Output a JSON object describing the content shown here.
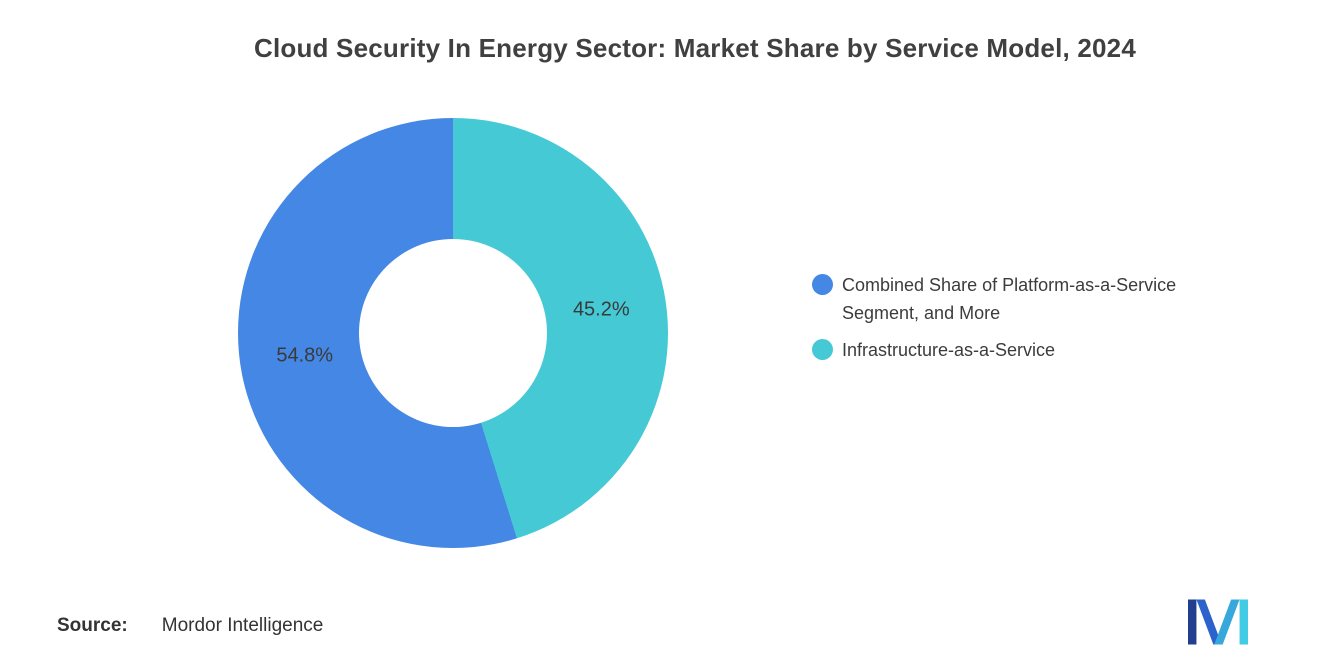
{
  "chart_data": {
    "type": "pie",
    "subtype": "donut",
    "title": "Cloud Security In Energy Sector: Market Share by Service Model, 2024",
    "start_angle_deg": 0,
    "direction": "clockwise",
    "donut_hole_ratio": 0.437,
    "slices": [
      {
        "label": "Infrastructure-as-a-Service",
        "value": 45.2,
        "display_value": "45.2%",
        "color": "#45C9D5"
      },
      {
        "label": "Combined Share of Platform-as-a-Service Segment, and More",
        "value": 54.8,
        "display_value": "54.8%",
        "color": "#4587E4"
      }
    ],
    "legend_position": "right",
    "legend_order": [
      1,
      0
    ]
  },
  "source": {
    "label": "Source:",
    "value": "Mordor Intelligence"
  },
  "logo": {
    "name": "mordor-intelligence-logo",
    "colors": [
      "#223E8F",
      "#2C62CC",
      "#38A8DC",
      "#41CBE4"
    ]
  }
}
